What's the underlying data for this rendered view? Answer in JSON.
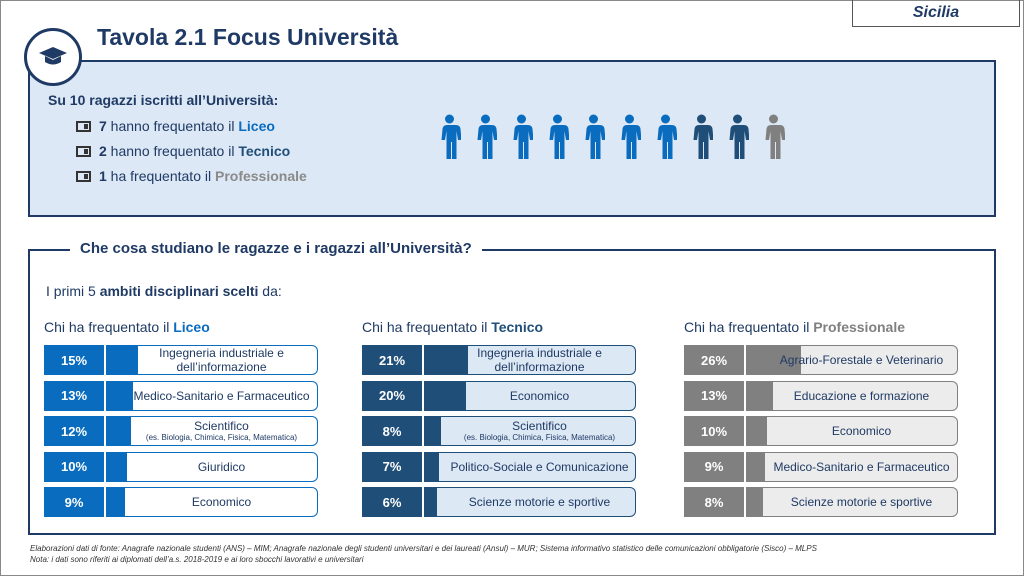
{
  "region": "Sicilia",
  "title": "Tavola 2.1 Focus Università",
  "summary": {
    "lead": "Su 10 ragazzi iscritti all’Università:",
    "items": [
      {
        "n": "7",
        "text": " hanno frequentato il ",
        "school": "Liceo",
        "color": "#0a6cbf"
      },
      {
        "n": "2",
        "text": " hanno frequentato il ",
        "school": "Tecnico",
        "color": "#1f4e79"
      },
      {
        "n": "1",
        "text": " ha frequentato il ",
        "school": "Professionale",
        "color": "#8a8a8a"
      }
    ],
    "people": {
      "liceo": 7,
      "tecnico": 2,
      "professionale": 1
    }
  },
  "section": {
    "title": "Che cosa studiano le ragazze e i ragazzi all’Università?",
    "intro_pre": "I primi 5 ",
    "intro_bold": "ambiti disciplinari scelti",
    "intro_post": " da:"
  },
  "colors": {
    "liceo": "#0a6cbf",
    "tecnico": "#1f4e79",
    "professionale": "#808080"
  },
  "columns": [
    {
      "prefix": "Chi ha frequentato il ",
      "school": "Liceo",
      "color": "#0a6cbf",
      "bg": "#ffffff",
      "rows": [
        {
          "pct": 15,
          "label": "Ingegneria industriale e dell’informazione",
          "sub": ""
        },
        {
          "pct": 13,
          "label": "Medico-Sanitario e Farmaceutico",
          "sub": ""
        },
        {
          "pct": 12,
          "label": "Scientifico",
          "sub": "(es. Biologia, Chimica, Fisica, Matematica)"
        },
        {
          "pct": 10,
          "label": "Giuridico",
          "sub": ""
        },
        {
          "pct": 9,
          "label": "Economico",
          "sub": ""
        }
      ]
    },
    {
      "prefix": "Chi ha frequentato il ",
      "school": "Tecnico",
      "color": "#1f4e79",
      "bg": "#dde8f5",
      "rows": [
        {
          "pct": 21,
          "label": "Ingegneria industriale e dell’informazione",
          "sub": ""
        },
        {
          "pct": 20,
          "label": "Economico",
          "sub": ""
        },
        {
          "pct": 8,
          "label": "Scientifico",
          "sub": "(es. Biologia, Chimica, Fisica, Matematica)"
        },
        {
          "pct": 7,
          "label": "Politico-Sociale e Comunicazione",
          "sub": ""
        },
        {
          "pct": 6,
          "label": "Scienze motorie e sportive",
          "sub": ""
        }
      ]
    },
    {
      "prefix": "Chi ha frequentato il ",
      "school": "Professionale",
      "color": "#808080",
      "bg": "#ececec",
      "rows": [
        {
          "pct": 26,
          "label": "Agrario-Forestale e Veterinario",
          "sub": ""
        },
        {
          "pct": 13,
          "label": "Educazione e formazione",
          "sub": ""
        },
        {
          "pct": 10,
          "label": "Economico",
          "sub": ""
        },
        {
          "pct": 9,
          "label": "Medico-Sanitario e Farmaceutico",
          "sub": ""
        },
        {
          "pct": 8,
          "label": "Scienze motorie e sportive",
          "sub": ""
        }
      ]
    }
  ],
  "footer": {
    "source": "Elaborazioni dati di fonte: Anagrafe nazionale studenti (ANS) – MIM; Anagrafe nazionale degli studenti universitari e dei laureati (Ansul) – MUR; Sistema informativo statistico delle comunicazioni obbligatorie (Sisco) – MLPS",
    "note": "Nota: i dati sono riferiti ai diplomati dell’a.s. 2018-2019 e ai loro sbocchi lavorativi e universitari"
  }
}
